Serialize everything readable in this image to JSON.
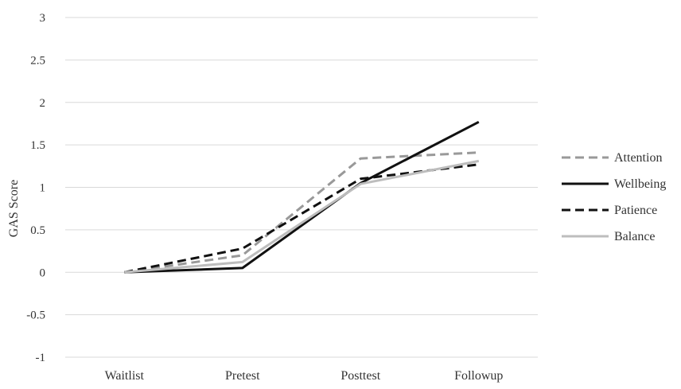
{
  "chart_data": {
    "type": "line",
    "title": "",
    "xlabel": "",
    "ylabel": "GAS Score",
    "categories": [
      "Waitlist",
      "Pretest",
      "Posttest",
      "Followup"
    ],
    "ylim": [
      -1,
      3
    ],
    "yticks": [
      "3",
      "2.5",
      "2",
      "1.5",
      "1",
      "0.5",
      "0",
      "-0.5",
      "-1"
    ],
    "ytick_values": [
      3,
      2.5,
      2,
      1.5,
      1,
      0.5,
      0,
      -0.5,
      -1
    ],
    "grid": true,
    "legend_position": "right",
    "series": [
      {
        "name": "Attention",
        "values": [
          0,
          0.2,
          1.34,
          1.41
        ],
        "color": "#999999",
        "dash": "dashed"
      },
      {
        "name": "Wellbeing",
        "values": [
          0,
          0.05,
          1.05,
          1.77
        ],
        "color": "#111111",
        "dash": "solid"
      },
      {
        "name": "Patience",
        "values": [
          0,
          0.28,
          1.1,
          1.27
        ],
        "color": "#111111",
        "dash": "dashed"
      },
      {
        "name": "Balance",
        "values": [
          0,
          0.12,
          1.04,
          1.31
        ],
        "color": "#bdbdbd",
        "dash": "solid"
      }
    ]
  }
}
